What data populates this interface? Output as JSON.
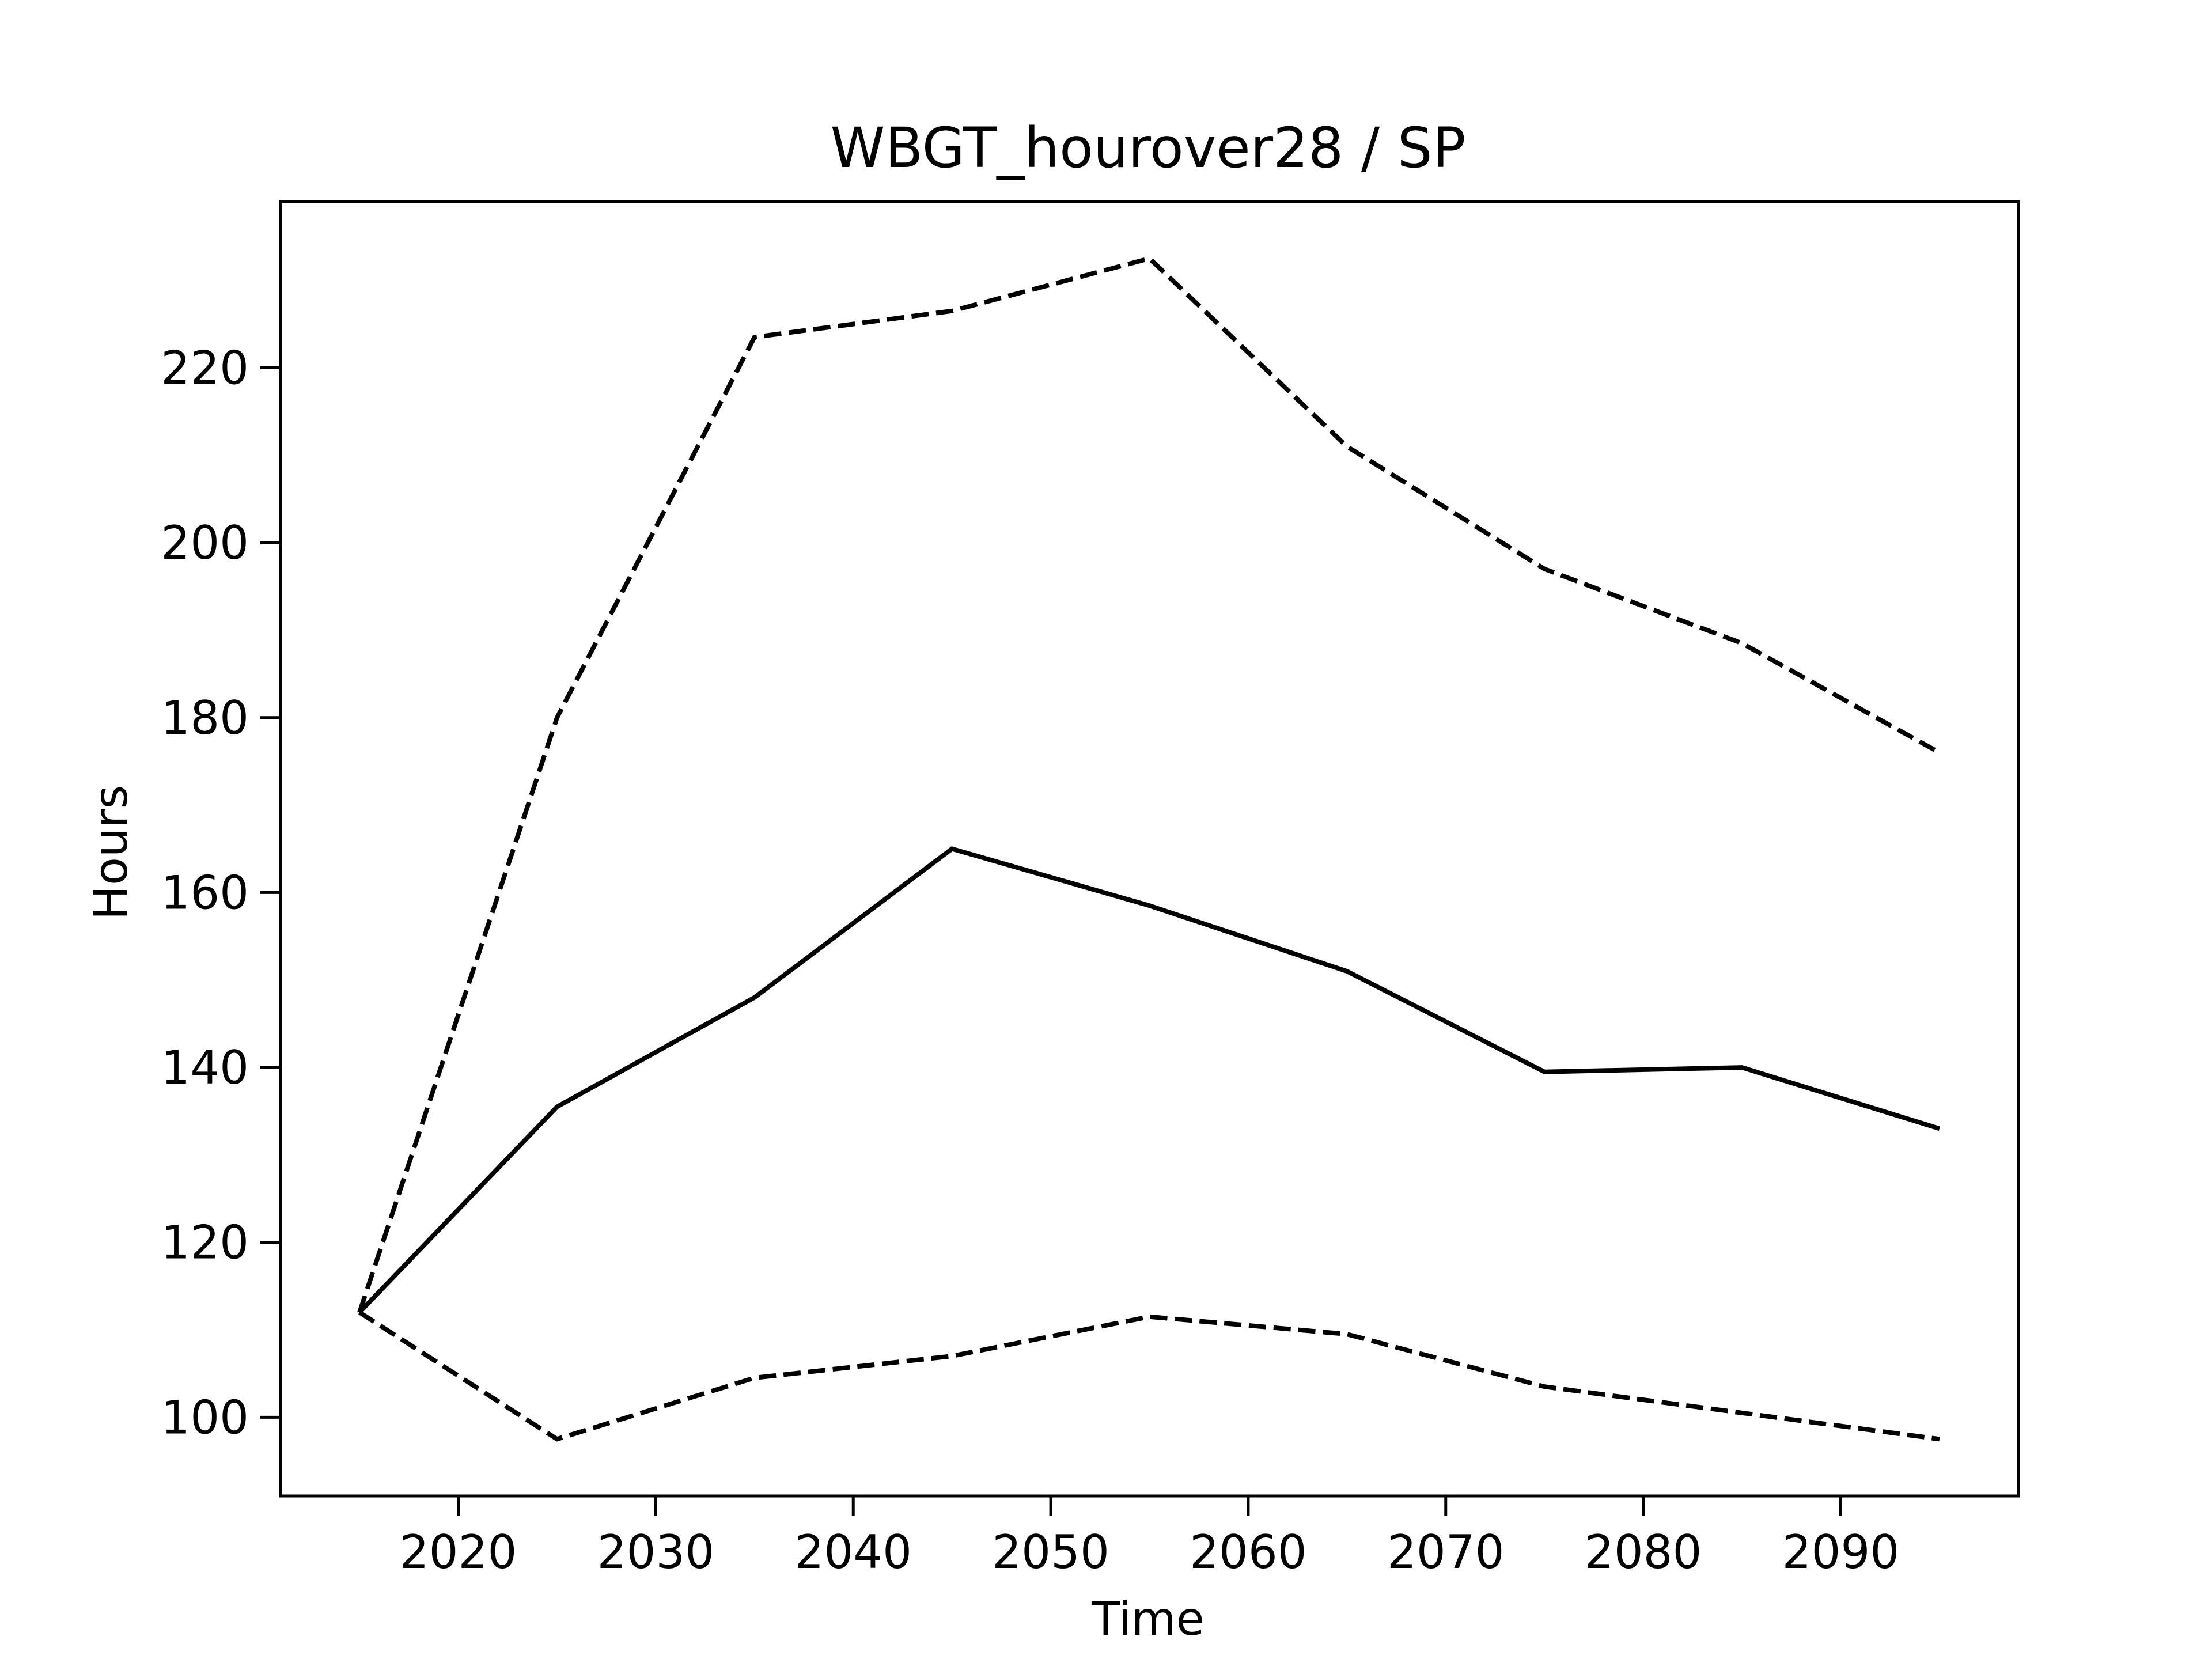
{
  "chart_data": {
    "type": "line",
    "title": "WBGT_hourover28 / SP",
    "xlabel": "Time",
    "ylabel": "Hours",
    "xlim": [
      2011,
      2099
    ],
    "ylim": [
      91,
      239
    ],
    "xticks": [
      2020,
      2030,
      2040,
      2050,
      2060,
      2070,
      2080,
      2090
    ],
    "yticks": [
      100,
      120,
      140,
      160,
      180,
      200,
      220
    ],
    "grid": false,
    "x": [
      2015,
      2025,
      2035,
      2045,
      2055,
      2065,
      2075,
      2085,
      2095
    ],
    "series": [
      {
        "style": "solid",
        "color": "#000000",
        "values": [
          112,
          135.5,
          148,
          165,
          158.5,
          151,
          139.5,
          140,
          133
        ]
      },
      {
        "style": "dashed",
        "color": "#000000",
        "values": [
          112,
          180,
          223.5,
          226.5,
          232.5,
          211,
          197,
          188.5,
          176
        ]
      },
      {
        "style": "dashed",
        "color": "#000000",
        "values": [
          112,
          97.5,
          104.5,
          107,
          111.5,
          109.5,
          103.5,
          100.5,
          97.5
        ]
      }
    ]
  }
}
